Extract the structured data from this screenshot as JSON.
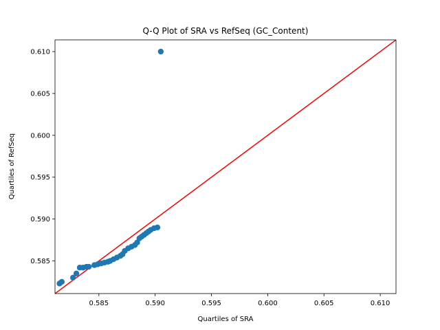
{
  "chart_data": {
    "type": "scatter",
    "title": "Q-Q Plot of SRA vs RefSeq (GC_Content)",
    "xlabel": "Quartiles of SRA",
    "ylabel": "Quartiles of RefSeq",
    "xlim": [
      0.5811,
      0.6114
    ],
    "ylim": [
      0.5811,
      0.6114
    ],
    "xticks": [
      "0.585",
      "0.590",
      "0.595",
      "0.600",
      "0.605",
      "0.610"
    ],
    "yticks": [
      "0.585",
      "0.590",
      "0.595",
      "0.600",
      "0.605",
      "0.610"
    ],
    "grid": false,
    "legend": "none",
    "colors": {
      "points": "#1f77b4",
      "reference_line": "#ff0000"
    },
    "reference_line": {
      "from": [
        0.5811,
        0.5811
      ],
      "to": [
        0.6114,
        0.6114
      ]
    },
    "points": [
      {
        "x": 0.5815,
        "y": 0.5823
      },
      {
        "x": 0.5817,
        "y": 0.5825
      },
      {
        "x": 0.5827,
        "y": 0.583
      },
      {
        "x": 0.583,
        "y": 0.5835
      },
      {
        "x": 0.5833,
        "y": 0.5842
      },
      {
        "x": 0.5836,
        "y": 0.5842
      },
      {
        "x": 0.5839,
        "y": 0.5843
      },
      {
        "x": 0.5841,
        "y": 0.5843
      },
      {
        "x": 0.5846,
        "y": 0.5845
      },
      {
        "x": 0.5849,
        "y": 0.5846
      },
      {
        "x": 0.5852,
        "y": 0.5847
      },
      {
        "x": 0.5855,
        "y": 0.5848
      },
      {
        "x": 0.5858,
        "y": 0.5849
      },
      {
        "x": 0.586,
        "y": 0.585
      },
      {
        "x": 0.5863,
        "y": 0.5852
      },
      {
        "x": 0.5866,
        "y": 0.5854
      },
      {
        "x": 0.5869,
        "y": 0.5856
      },
      {
        "x": 0.5871,
        "y": 0.5858
      },
      {
        "x": 0.5873,
        "y": 0.5862
      },
      {
        "x": 0.5876,
        "y": 0.5865
      },
      {
        "x": 0.5879,
        "y": 0.5867
      },
      {
        "x": 0.5882,
        "y": 0.5869
      },
      {
        "x": 0.5884,
        "y": 0.5872
      },
      {
        "x": 0.5886,
        "y": 0.5877
      },
      {
        "x": 0.5888,
        "y": 0.5879
      },
      {
        "x": 0.589,
        "y": 0.5881
      },
      {
        "x": 0.5892,
        "y": 0.5883
      },
      {
        "x": 0.5894,
        "y": 0.5885
      },
      {
        "x": 0.5896,
        "y": 0.5887
      },
      {
        "x": 0.5899,
        "y": 0.5889
      },
      {
        "x": 0.5902,
        "y": 0.589
      },
      {
        "x": 0.5905,
        "y": 0.61
      }
    ]
  }
}
